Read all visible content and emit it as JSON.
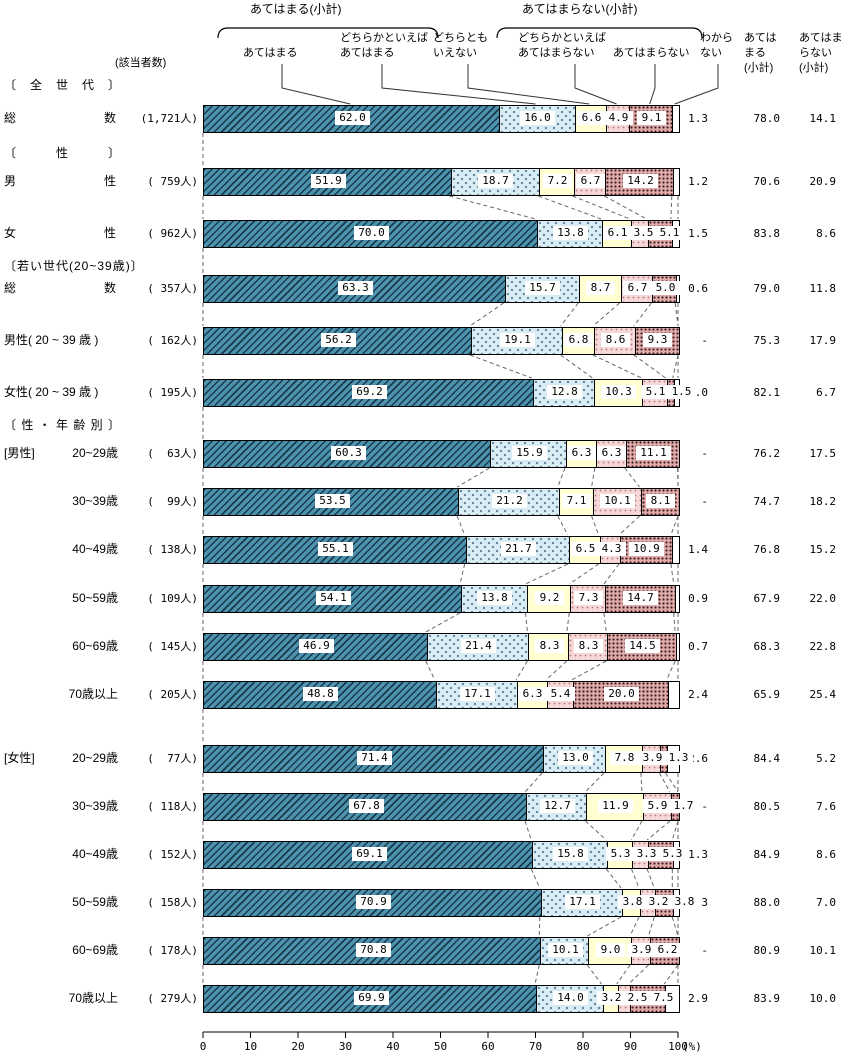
{
  "header": {
    "agree_bracket_title": "あてはまる(小計)",
    "disagree_bracket_title": "あてはまらない(小計)",
    "respondents_label": "(該当者数)",
    "category_labels": [
      {
        "name": "applies",
        "lines": [
          "あてはまる"
        ]
      },
      {
        "name": "somewhat-applies",
        "lines": [
          "どちらかといえば",
          "あてはまる"
        ]
      },
      {
        "name": "neither",
        "lines": [
          "どちらとも",
          "いえない"
        ]
      },
      {
        "name": "somewhat-not-apply",
        "lines": [
          "どちらかといえば",
          "あてはまらない"
        ]
      },
      {
        "name": "not-apply",
        "lines": [
          "あてはまらない"
        ]
      },
      {
        "name": "dont-know",
        "lines": [
          "わから",
          "ない"
        ]
      }
    ],
    "summary_columns": [
      {
        "name": "agree-subtotal",
        "lines": [
          "あては",
          "まる",
          "(小計)"
        ]
      },
      {
        "name": "disagree-subtotal",
        "lines": [
          "あてはま",
          "らない",
          "(小計)"
        ]
      }
    ]
  },
  "axis": {
    "tick_labels": [
      "0",
      "10",
      "20",
      "30",
      "40",
      "50",
      "60",
      "70",
      "80",
      "90",
      "100"
    ],
    "unit_label": "(%)"
  },
  "colors": {
    "segment_fills": [
      "#4e93ad",
      "#daedf5",
      "#ffffd2",
      "#f6d8d8",
      "#e2abab",
      "#ffffff"
    ],
    "bar_outline": "#000000",
    "connector": "#666666"
  },
  "chart_data": {
    "type": "bar",
    "orientation": "horizontal-stacked",
    "value_unit": "percent",
    "xlim": [
      0,
      100
    ],
    "series_labels": [
      "あてはまる",
      "どちらかといえばあてはまる",
      "どちらともいえない",
      "どちらかといえばあてはまらない",
      "あてはまらない",
      "わからない"
    ],
    "groups": [
      {
        "section": "〔　全　世　代　〕",
        "rows": [
          {
            "label": "総数",
            "spread": true,
            "count": "(1,721人)",
            "values": [
              "62.0",
              "16.0",
              "6.6",
              "4.9",
              "9.1"
            ],
            "dont_know": "1.3",
            "agree_subtotal": "78.0",
            "disagree_subtotal": "14.1"
          }
        ]
      },
      {
        "section": "〔　　　性　　　〕",
        "rows": [
          {
            "label": "男性",
            "spread": true,
            "count": "( 759人)",
            "values": [
              "51.9",
              "18.7",
              "7.2",
              "6.7",
              "14.2"
            ],
            "dont_know": "1.2",
            "agree_subtotal": "70.6",
            "disagree_subtotal": "20.9"
          },
          {
            "label": "女性",
            "spread": true,
            "count": "( 962人)",
            "values": [
              "70.0",
              "13.8",
              "6.1",
              "3.5",
              "5.1"
            ],
            "dont_know": "1.5",
            "agree_subtotal": "83.8",
            "disagree_subtotal": "8.6"
          }
        ]
      },
      {
        "section": "〔若い世代(20~39歳)〕",
        "rows": [
          {
            "label": "総数",
            "spread": true,
            "count": "( 357人)",
            "values": [
              "63.3",
              "15.7",
              "8.7",
              "6.7",
              "5.0"
            ],
            "dont_know": "0.6",
            "agree_subtotal": "79.0",
            "disagree_subtotal": "11.8"
          },
          {
            "label": "男性( 20 ~ 39 歳 )",
            "spread": false,
            "count": "( 162人)",
            "values": [
              "56.2",
              "19.1",
              "6.8",
              "8.6",
              "9.3"
            ],
            "dont_know": "-",
            "agree_subtotal": "75.3",
            "disagree_subtotal": "17.9"
          },
          {
            "label": "女性( 20 ~ 39 歳 )",
            "spread": false,
            "count": "( 195人)",
            "values": [
              "69.2",
              "12.8",
              "10.3",
              "5.1",
              "1.5"
            ],
            "dont_know": "1.0",
            "agree_subtotal": "82.1",
            "disagree_subtotal": "6.7"
          }
        ]
      },
      {
        "section": "〔 性 ・ 年 齢 別 〕",
        "rows": [
          {
            "prefix": "[男性]",
            "label": "20~29歳",
            "spread": false,
            "age": true,
            "count": "(  63人)",
            "values": [
              "60.3",
              "15.9",
              "6.3",
              "6.3",
              "11.1"
            ],
            "dont_know": "-",
            "agree_subtotal": "76.2",
            "disagree_subtotal": "17.5"
          },
          {
            "label": "30~39歳",
            "spread": false,
            "age": true,
            "count": "(  99人)",
            "values": [
              "53.5",
              "21.2",
              "7.1",
              "10.1",
              "8.1"
            ],
            "dont_know": "-",
            "agree_subtotal": "74.7",
            "disagree_subtotal": "18.2"
          },
          {
            "label": "40~49歳",
            "spread": false,
            "age": true,
            "count": "( 138人)",
            "values": [
              "55.1",
              "21.7",
              "6.5",
              "4.3",
              "10.9"
            ],
            "dont_know": "1.4",
            "agree_subtotal": "76.8",
            "disagree_subtotal": "15.2"
          },
          {
            "label": "50~59歳",
            "spread": false,
            "age": true,
            "count": "( 109人)",
            "values": [
              "54.1",
              "13.8",
              "9.2",
              "7.3",
              "14.7"
            ],
            "dont_know": "0.9",
            "agree_subtotal": "67.9",
            "disagree_subtotal": "22.0"
          },
          {
            "label": "60~69歳",
            "spread": false,
            "age": true,
            "count": "( 145人)",
            "values": [
              "46.9",
              "21.4",
              "8.3",
              "8.3",
              "14.5"
            ],
            "dont_know": "0.7",
            "agree_subtotal": "68.3",
            "disagree_subtotal": "22.8"
          },
          {
            "label": "70歳以上",
            "spread": false,
            "age": true,
            "count": "( 205人)",
            "values": [
              "48.8",
              "17.1",
              "6.3",
              "5.4",
              "20.0"
            ],
            "dont_know": "2.4",
            "agree_subtotal": "65.9",
            "disagree_subtotal": "25.4"
          }
        ]
      },
      {
        "section": null,
        "rows": [
          {
            "prefix": "[女性]",
            "label": "20~29歳",
            "spread": false,
            "age": true,
            "count": "(  77人)",
            "values": [
              "71.4",
              "13.0",
              "7.8",
              "3.9",
              "1.3"
            ],
            "dont_know": "2.6",
            "agree_subtotal": "84.4",
            "disagree_subtotal": "5.2"
          },
          {
            "label": "30~39歳",
            "spread": false,
            "age": true,
            "count": "( 118人)",
            "values": [
              "67.8",
              "12.7",
              "11.9",
              "5.9",
              "1.7"
            ],
            "dont_know": "-",
            "agree_subtotal": "80.5",
            "disagree_subtotal": "7.6"
          },
          {
            "label": "40~49歳",
            "spread": false,
            "age": true,
            "count": "( 152人)",
            "values": [
              "69.1",
              "15.8",
              "5.3",
              "3.3",
              "5.3"
            ],
            "dont_know": "1.3",
            "agree_subtotal": "84.9",
            "disagree_subtotal": "8.6"
          },
          {
            "label": "50~59歳",
            "spread": false,
            "age": true,
            "count": "( 158人)",
            "values": [
              "70.9",
              "17.1",
              "3.8",
              "3.2",
              "3.8"
            ],
            "dont_know": "1.3",
            "agree_subtotal": "88.0",
            "disagree_subtotal": "7.0"
          },
          {
            "label": "60~69歳",
            "spread": false,
            "age": true,
            "count": "( 178人)",
            "values": [
              "70.8",
              "10.1",
              "9.0",
              "3.9",
              "6.2"
            ],
            "dont_know": "-",
            "agree_subtotal": "80.9",
            "disagree_subtotal": "10.1"
          },
          {
            "label": "70歳以上",
            "spread": false,
            "age": true,
            "count": "( 279人)",
            "values": [
              "69.9",
              "14.0",
              "3.2",
              "2.5",
              "7.5"
            ],
            "dont_know": "2.9",
            "agree_subtotal": "83.9",
            "disagree_subtotal": "10.0"
          }
        ]
      }
    ]
  }
}
